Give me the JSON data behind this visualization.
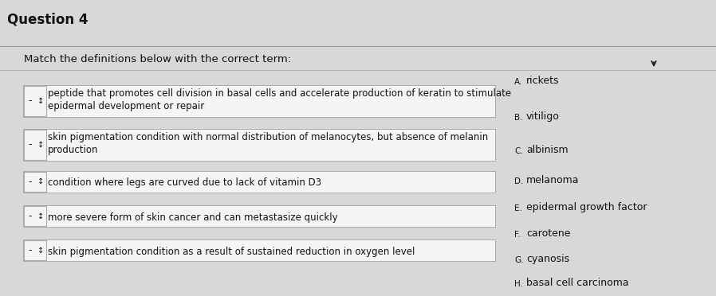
{
  "title": "Question 4",
  "instruction": "Match the definitions below with the correct term:",
  "page_bg": "#d8d8d8",
  "header_bg": "#c0c0c0",
  "content_bg": "#e0e0e0",
  "box_facecolor": "#f5f5f5",
  "box_edgecolor": "#aaaaaa",
  "text_color": "#111111",
  "definitions": [
    {
      "line1": "peptide that promotes cell division in basal cells and accelerate production of keratin to stimulate",
      "line2": "epidermal development or repair",
      "two_lines": true
    },
    {
      "line1": "skin pigmentation condition with normal distribution of melanocytes, but absence of melanin",
      "line2": "production",
      "two_lines": true
    },
    {
      "line1": "condition where legs are curved due to lack of vitamin D3",
      "line2": "",
      "two_lines": false
    },
    {
      "line1": "more severe form of skin cancer and can metastasize quickly",
      "line2": "",
      "two_lines": false
    },
    {
      "line1": "skin pigmentation condition as a result of sustained reduction in oxygen level",
      "line2": "",
      "two_lines": false
    }
  ],
  "terms": [
    {
      "label": "A.",
      "term": "rickets"
    },
    {
      "label": "B.",
      "term": "vitiligo"
    },
    {
      "label": "C.",
      "term": "albinism"
    },
    {
      "label": "D.",
      "term": "melanoma"
    },
    {
      "label": "E.",
      "term": "epidermal growth factor"
    },
    {
      "label": "F.",
      "term": "carotene"
    },
    {
      "label": "G.",
      "term": "cyanosis"
    },
    {
      "label": "H.",
      "term": "basal cell carcinoma"
    }
  ]
}
